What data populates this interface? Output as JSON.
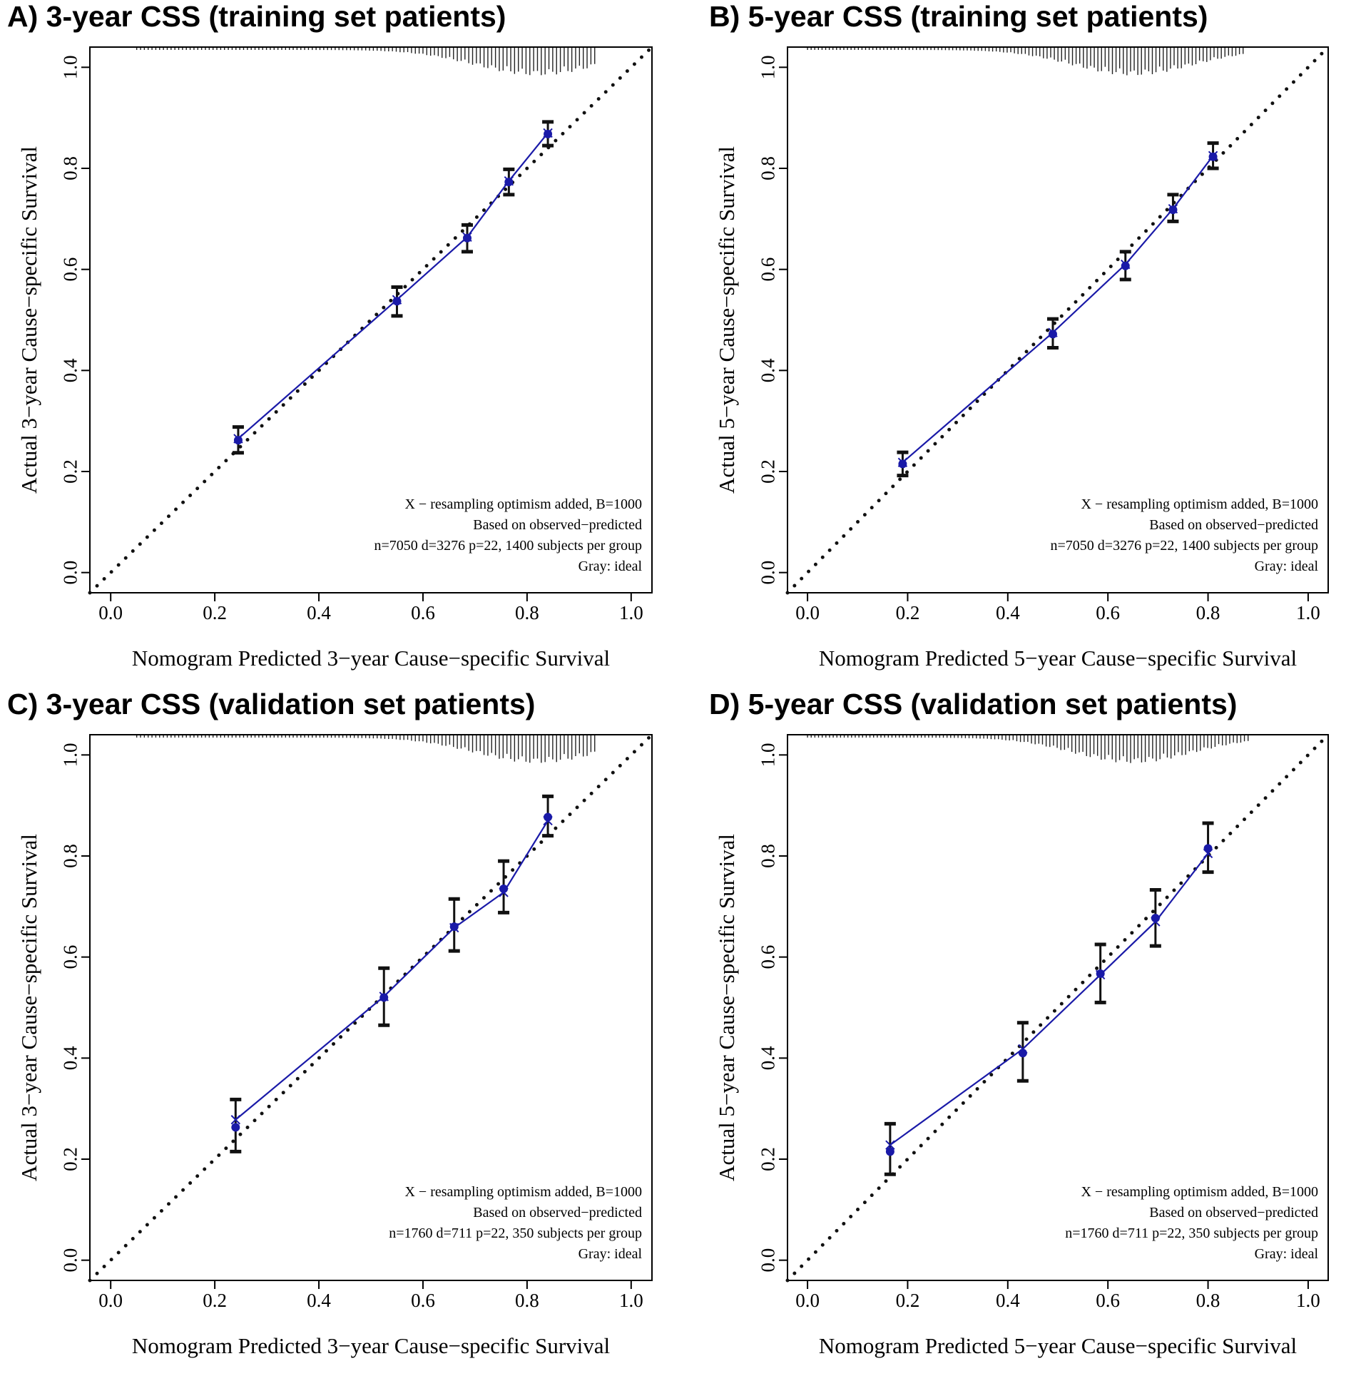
{
  "colors": {
    "calibration_line": "#1a1aa8",
    "point": "#1a1aa8",
    "error_bar": "#111111",
    "ideal_line": "#111111"
  },
  "chart_data": [
    {
      "id": "A",
      "type": "scatter",
      "title": "A) 3-year CSS (training set patients)",
      "xlabel": "Nomogram Predicted 3−year Cause−specific Survival",
      "ylabel": "Actual 3−year Cause−specific Survival",
      "xlim": [
        -0.04,
        1.04
      ],
      "ylim": [
        -0.04,
        1.04
      ],
      "xticks": [
        "0.0",
        "0.2",
        "0.4",
        "0.6",
        "0.8",
        "1.0"
      ],
      "yticks": [
        "0.0",
        "0.2",
        "0.4",
        "0.6",
        "0.8",
        "1.0"
      ],
      "ideal_line": "dotted diagonal",
      "series": [
        {
          "name": "observed",
          "marker": "dot",
          "x": [
            0.245,
            0.55,
            0.685,
            0.765,
            0.84
          ],
          "y": [
            0.262,
            0.537,
            0.662,
            0.773,
            0.868
          ]
        },
        {
          "name": "bias-corrected (X)",
          "marker": "x",
          "x": [
            0.245,
            0.55,
            0.685,
            0.765,
            0.84
          ],
          "y": [
            0.265,
            0.54,
            0.664,
            0.775,
            0.87
          ]
        }
      ],
      "error_bars": {
        "lower": [
          0.237,
          0.508,
          0.635,
          0.748,
          0.845
        ],
        "upper": [
          0.288,
          0.565,
          0.688,
          0.798,
          0.892
        ]
      },
      "rug": {
        "x_min": 0.05,
        "x_max": 0.93,
        "peak": 0.82
      },
      "annotations": [
        "X − resampling optimism added, B=1000",
        "Based on observed−predicted",
        "n=7050 d=3276 p=22, 1400 subjects per group",
        "Gray: ideal"
      ]
    },
    {
      "id": "B",
      "type": "scatter",
      "title": "B) 5-year CSS (training set patients)",
      "xlabel": "Nomogram Predicted 5−year Cause−specific Survival",
      "ylabel": "Actual 5−year Cause−specific Survival",
      "xlim": [
        -0.04,
        1.04
      ],
      "ylim": [
        -0.04,
        1.04
      ],
      "xticks": [
        "0.0",
        "0.2",
        "0.4",
        "0.6",
        "0.8",
        "1.0"
      ],
      "yticks": [
        "0.0",
        "0.2",
        "0.4",
        "0.6",
        "0.8",
        "1.0"
      ],
      "ideal_line": "dotted diagonal",
      "series": [
        {
          "name": "observed",
          "marker": "dot",
          "x": [
            0.19,
            0.49,
            0.635,
            0.73,
            0.81
          ],
          "y": [
            0.215,
            0.472,
            0.607,
            0.718,
            0.823
          ]
        },
        {
          "name": "bias-corrected (X)",
          "marker": "x",
          "x": [
            0.19,
            0.49,
            0.635,
            0.73,
            0.81
          ],
          "y": [
            0.218,
            0.475,
            0.61,
            0.72,
            0.825
          ]
        }
      ],
      "error_bars": {
        "lower": [
          0.192,
          0.445,
          0.58,
          0.695,
          0.8
        ],
        "upper": [
          0.238,
          0.502,
          0.635,
          0.748,
          0.85
        ]
      },
      "rug": {
        "x_min": 0.0,
        "x_max": 0.87,
        "peak": 0.65
      },
      "annotations": [
        "X − resampling optimism added, B=1000",
        "Based on observed−predicted",
        "n=7050 d=3276 p=22, 1400 subjects per group",
        "Gray: ideal"
      ]
    },
    {
      "id": "C",
      "type": "scatter",
      "title": "C) 3-year CSS (validation set patients)",
      "xlabel": "Nomogram Predicted 3−year Cause−specific Survival",
      "ylabel": "Actual 3−year Cause−specific Survival",
      "xlim": [
        -0.04,
        1.04
      ],
      "ylim": [
        -0.04,
        1.04
      ],
      "xticks": [
        "0.0",
        "0.2",
        "0.4",
        "0.6",
        "0.8",
        "1.0"
      ],
      "yticks": [
        "0.0",
        "0.2",
        "0.4",
        "0.6",
        "0.8",
        "1.0"
      ],
      "ideal_line": "dotted diagonal",
      "series": [
        {
          "name": "observed",
          "marker": "dot",
          "x": [
            0.24,
            0.525,
            0.66,
            0.755,
            0.84
          ],
          "y": [
            0.263,
            0.52,
            0.66,
            0.735,
            0.877
          ]
        },
        {
          "name": "bias-corrected (X)",
          "marker": "x",
          "x": [
            0.24,
            0.525,
            0.66,
            0.755,
            0.84
          ],
          "y": [
            0.278,
            0.522,
            0.658,
            0.728,
            0.87
          ]
        }
      ],
      "error_bars": {
        "lower": [
          0.215,
          0.465,
          0.612,
          0.688,
          0.84
        ],
        "upper": [
          0.318,
          0.578,
          0.715,
          0.79,
          0.918
        ]
      },
      "rug": {
        "x_min": 0.05,
        "x_max": 0.93,
        "peak": 0.82
      },
      "annotations": [
        "X − resampling optimism added, B=1000",
        "Based on observed−predicted",
        "n=1760 d=711 p=22, 350 subjects per group",
        "Gray: ideal"
      ]
    },
    {
      "id": "D",
      "type": "scatter",
      "title": "D) 5-year CSS (validation set patients)",
      "xlabel": "Nomogram Predicted 5−year Cause−specific Survival",
      "ylabel": "Actual 5−year Cause−specific Survival",
      "xlim": [
        -0.04,
        1.04
      ],
      "ylim": [
        -0.04,
        1.04
      ],
      "xticks": [
        "0.0",
        "0.2",
        "0.4",
        "0.6",
        "0.8",
        "1.0"
      ],
      "yticks": [
        "0.0",
        "0.2",
        "0.4",
        "0.6",
        "0.8",
        "1.0"
      ],
      "ideal_line": "dotted diagonal",
      "series": [
        {
          "name": "observed",
          "marker": "dot",
          "x": [
            0.165,
            0.43,
            0.585,
            0.695,
            0.8
          ],
          "y": [
            0.215,
            0.41,
            0.567,
            0.677,
            0.815
          ]
        },
        {
          "name": "bias-corrected (X)",
          "marker": "x",
          "x": [
            0.165,
            0.43,
            0.585,
            0.695,
            0.8
          ],
          "y": [
            0.228,
            0.418,
            0.565,
            0.67,
            0.805
          ]
        }
      ],
      "error_bars": {
        "lower": [
          0.17,
          0.355,
          0.51,
          0.622,
          0.768
        ],
        "upper": [
          0.27,
          0.47,
          0.625,
          0.733,
          0.865
        ]
      },
      "rug": {
        "x_min": 0.0,
        "x_max": 0.88,
        "peak": 0.65
      },
      "annotations": [
        "X − resampling optimism added, B=1000",
        "Based on observed−predicted",
        "n=1760 d=711 p=22, 350 subjects per group",
        "Gray: ideal"
      ]
    }
  ]
}
